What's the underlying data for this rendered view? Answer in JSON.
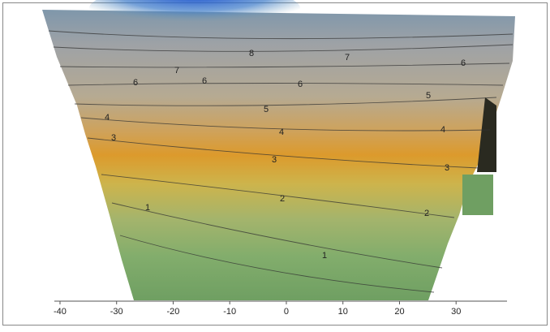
{
  "map": {
    "type": "contour",
    "contour_labels": [
      8,
      7,
      7,
      6,
      6,
      6,
      6,
      5,
      5,
      4,
      4,
      4,
      3,
      3,
      3,
      2,
      2,
      1,
      1
    ],
    "x_axis": {
      "xlim": [
        -41,
        39
      ],
      "xticks": [
        -40,
        -30,
        -20,
        -10,
        0,
        10,
        20,
        30
      ]
    }
  }
}
